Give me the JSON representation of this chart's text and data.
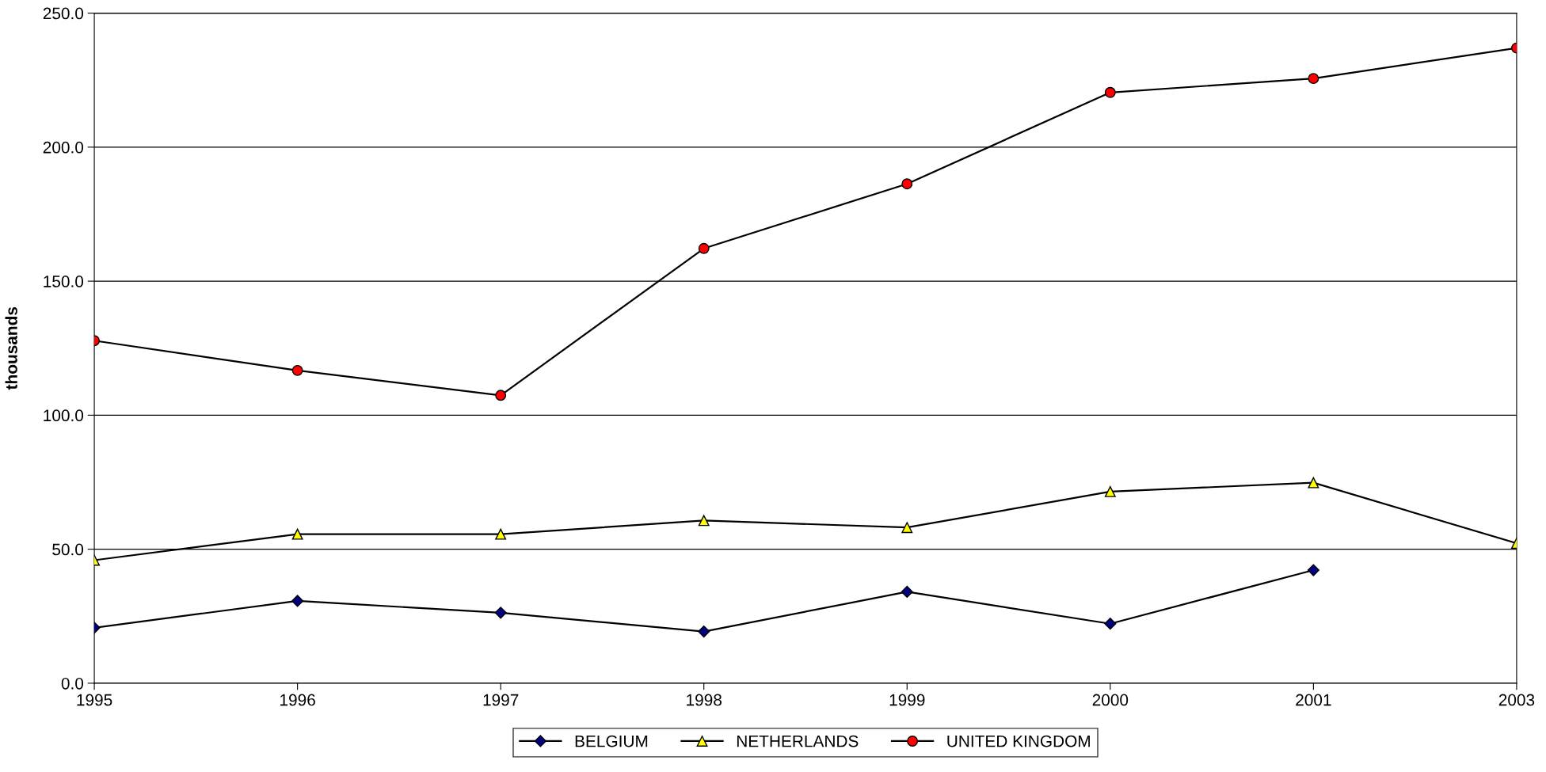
{
  "chart_data": {
    "type": "line",
    "ylabel": "thousands",
    "categories": [
      "1995",
      "1996",
      "1997",
      "1998",
      "1999",
      "2000",
      "2001",
      "2003"
    ],
    "series": [
      {
        "name": "BELGIUM",
        "color": "#000080",
        "marker": "diamond",
        "values": [
          20.7,
          30.7,
          26.3,
          19.3,
          34.1,
          22.2,
          42.2,
          null
        ]
      },
      {
        "name": "NETHERLANDS",
        "color": "#ffff00",
        "marker": "triangle",
        "values": [
          45.9,
          55.6,
          55.6,
          60.7,
          58.1,
          71.5,
          74.8,
          52.2
        ]
      },
      {
        "name": "UNITED KINGDOM",
        "color": "#ff0000",
        "marker": "circle",
        "values": [
          127.8,
          116.7,
          107.4,
          162.2,
          186.3,
          220.4,
          225.6,
          237.0
        ]
      }
    ],
    "ylim": [
      0,
      250
    ],
    "yticks": [
      {
        "value": 0,
        "label": "0.0"
      },
      {
        "value": 50,
        "label": "50.0"
      },
      {
        "value": 100,
        "label": "100.0"
      },
      {
        "value": 150,
        "label": "150.0"
      },
      {
        "value": 200,
        "label": "200.0"
      },
      {
        "value": 250,
        "label": "250.0"
      }
    ],
    "grid": "y",
    "legend": "bottom",
    "line_style": "solid"
  }
}
